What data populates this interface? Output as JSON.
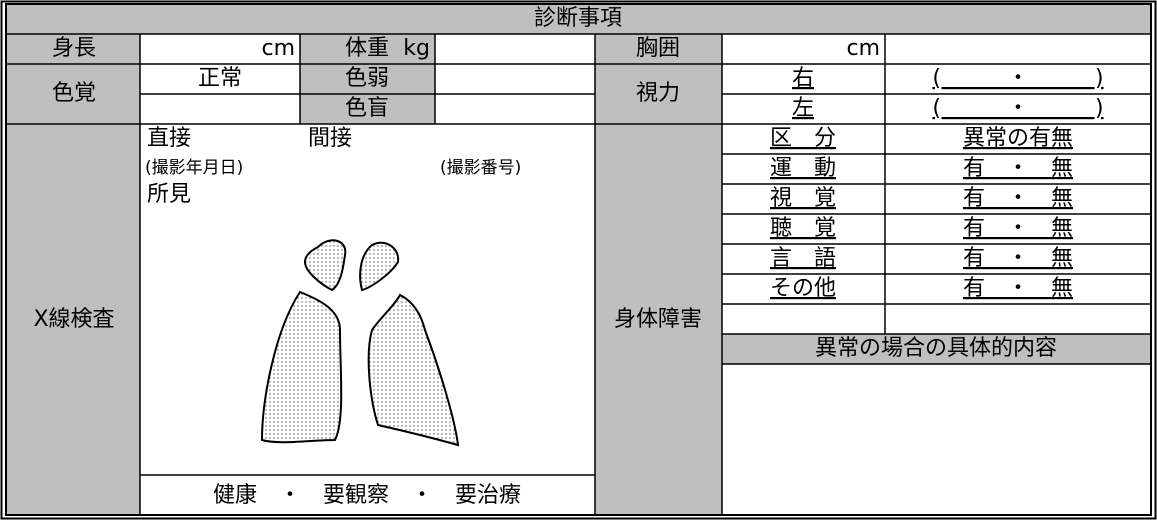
{
  "header": {
    "title": "診断事項"
  },
  "measurements": {
    "height_label": "身長",
    "height_unit": "cm",
    "weight_label": "体重",
    "weight_unit": "kg",
    "chest_label": "胸囲",
    "chest_unit": "cm"
  },
  "color_vision": {
    "label": "色覚",
    "normal": "正常",
    "weak": "色弱",
    "blind": "色盲"
  },
  "visual_acuity": {
    "label": "視力",
    "right": "右",
    "left": "左",
    "right_value": "(　　　・　　　)",
    "left_value": "(　　　・　　　)"
  },
  "xray": {
    "label": "X線検査",
    "direct": "直接",
    "indirect": "間接",
    "date": "(撮影年月日)",
    "number": "(撮影番号)",
    "findings": "所見",
    "results": "健康　・　要観察　・　要治療"
  },
  "disability": {
    "label": "身体障害",
    "columns": [
      "区　分",
      "異常の有無"
    ],
    "rows": [
      [
        "運　動",
        "有　・　無"
      ],
      [
        "視　覚",
        "有　・　無"
      ],
      [
        "聴　覚",
        "有　・　無"
      ],
      [
        "言　語",
        "有　・　無"
      ],
      [
        "その他",
        "有　・　無"
      ]
    ],
    "details_label": "異常の場合の具体的内容"
  }
}
